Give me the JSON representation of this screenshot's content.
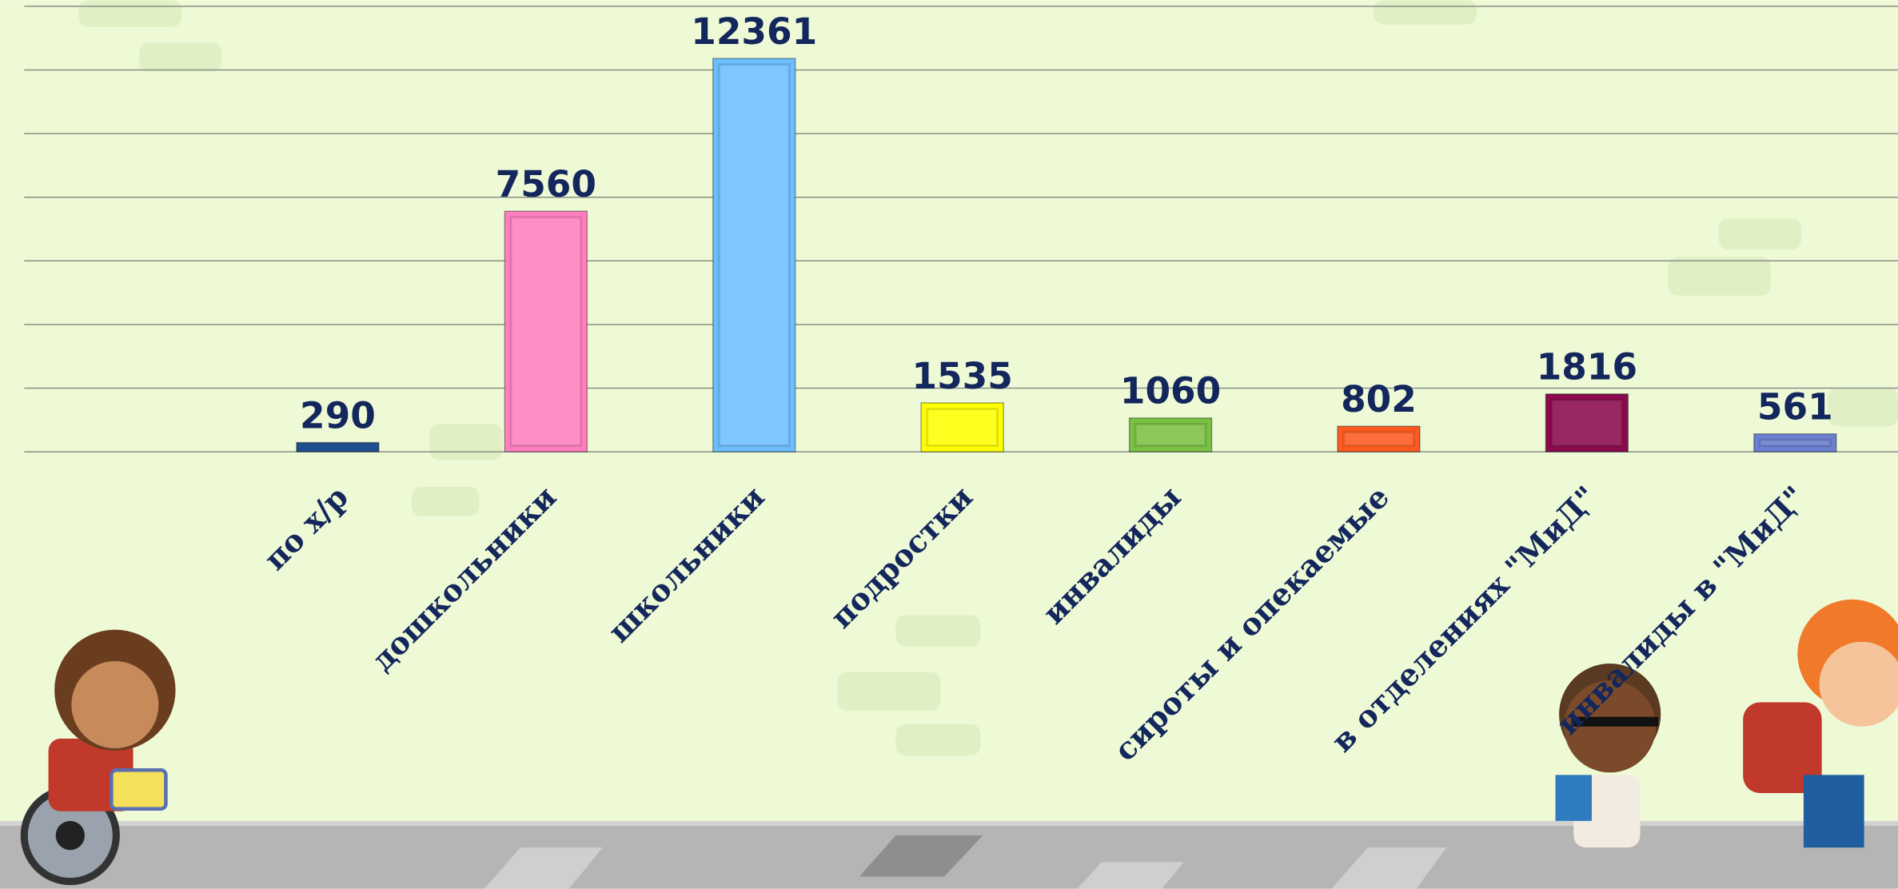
{
  "chart_data": {
    "type": "bar",
    "categories": [
      "по х/р",
      "дошкольники",
      "школьники",
      "подростки",
      "инвалиды",
      "сироты и опекаемые",
      "в отделениях \"МиД\"",
      "инвалиды в \"МиД\""
    ],
    "values": [
      290,
      7560,
      12361,
      1535,
      1060,
      802,
      1816,
      561
    ],
    "colors": [
      "#1f4e8c",
      "#ff7fbf",
      "#6bbfff",
      "#ffff00",
      "#7ac142",
      "#ff5a1f",
      "#8b0a4e",
      "#6b7fd0"
    ],
    "ylim": [
      0,
      14000
    ],
    "yticks": [
      0,
      2000,
      4000,
      6000,
      8000,
      10000,
      12000,
      14000
    ],
    "grid": true
  }
}
